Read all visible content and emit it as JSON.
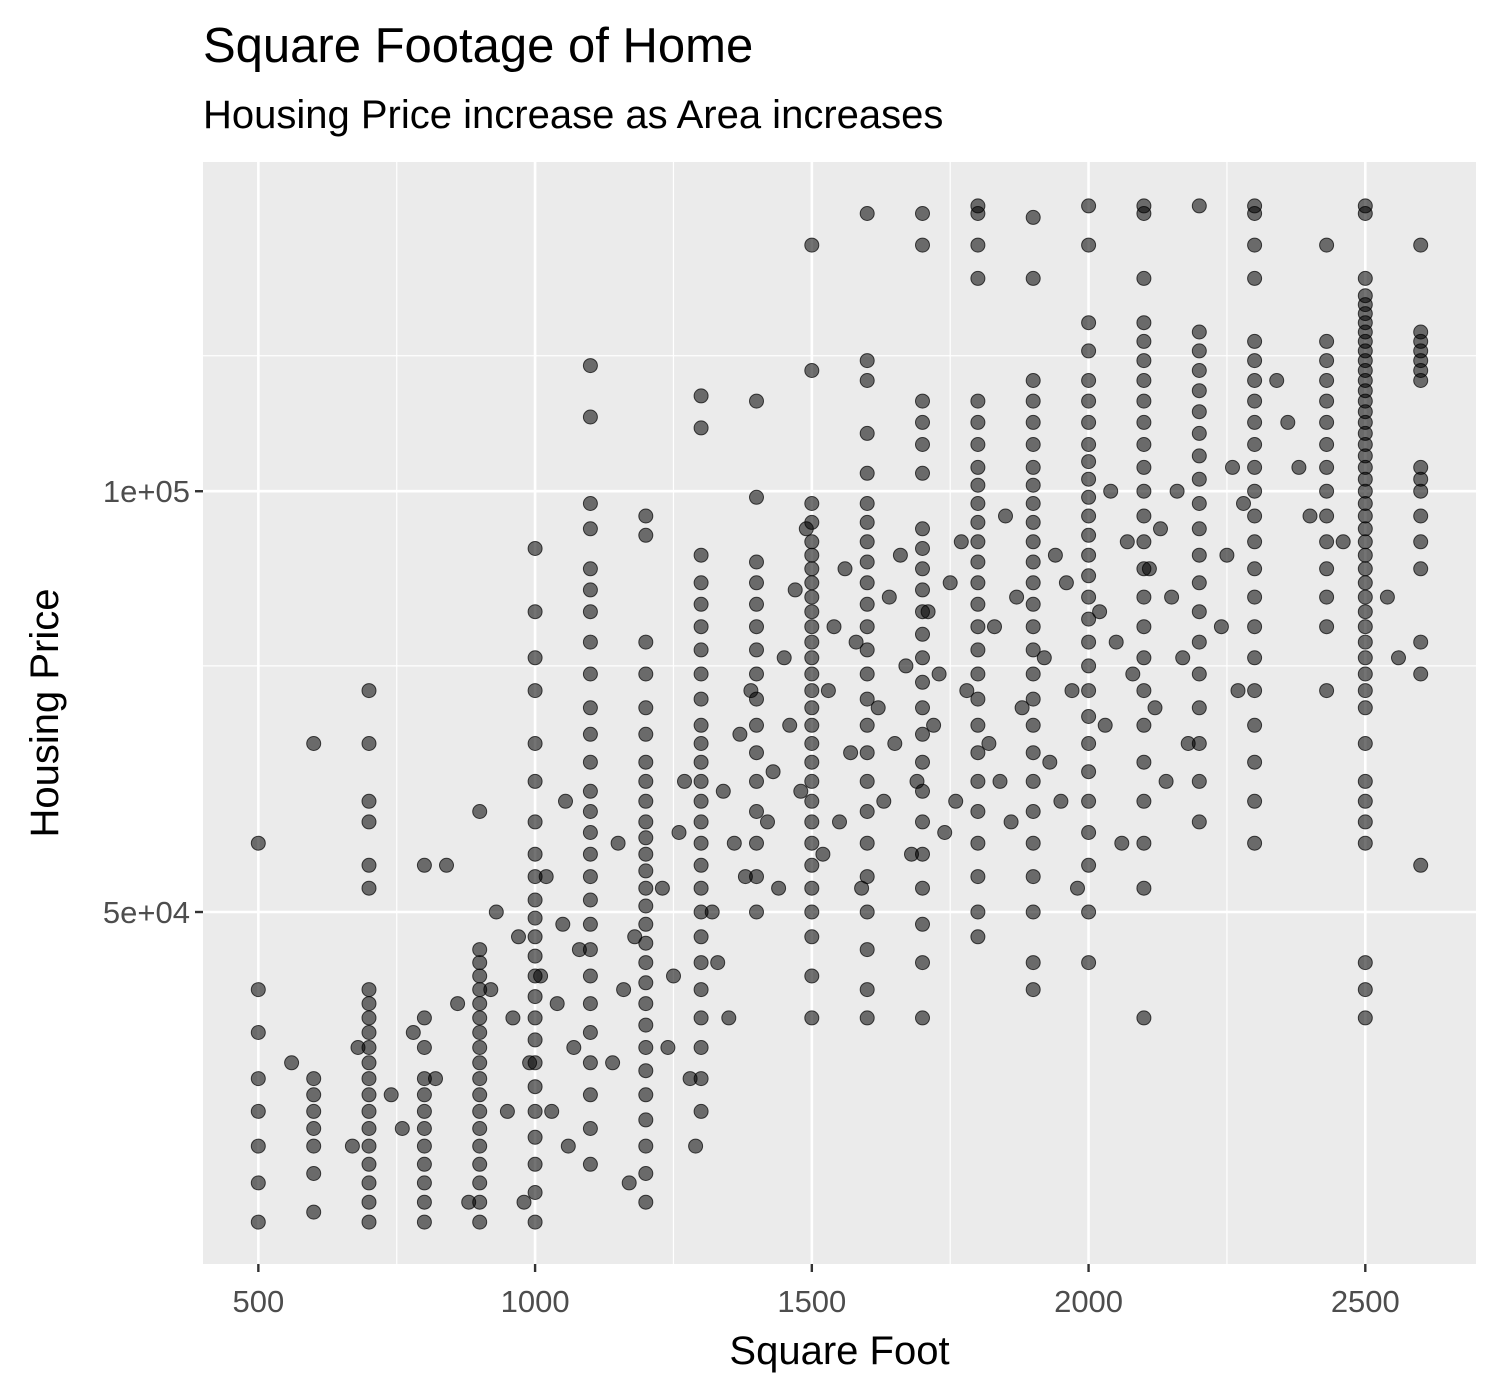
{
  "chart_data": {
    "type": "scatter",
    "title": "Square Footage of Home",
    "subtitle": "Housing Price increase as Area increases",
    "xlabel": "Square Foot",
    "ylabel": "Housing Price",
    "xlim": [
      400,
      2700
    ],
    "ylim": [
      28000,
      172000
    ],
    "y_scale": "log",
    "x_ticks": [
      500,
      1000,
      1500,
      2000,
      2500
    ],
    "x_tick_labels": [
      "500",
      "1000",
      "1500",
      "2000",
      "2500"
    ],
    "y_ticks": [
      50000,
      100000
    ],
    "y_tick_labels": [
      "5e+04",
      "1e+05"
    ],
    "grid": true,
    "background_color": "#ebebeb",
    "grid_color": "#ffffff",
    "point_color": "#000000",
    "point_opacity": 0.55,
    "columns": [
      {
        "x": 500,
        "y": [
          30000,
          32000,
          34000,
          36000,
          38000,
          41000,
          44000,
          56000
        ]
      },
      {
        "x": 600,
        "y": [
          30500,
          32500,
          34000,
          35000,
          36000,
          37000,
          38000,
          66000
        ]
      },
      {
        "x": 700,
        "y": [
          30000,
          31000,
          32000,
          33000,
          34000,
          35000,
          36000,
          37000,
          38000,
          39000,
          40000,
          41000,
          42000,
          43000,
          44000,
          52000,
          54000,
          58000,
          60000,
          66000,
          72000
        ]
      },
      {
        "x": 800,
        "y": [
          30000,
          31000,
          32000,
          33000,
          34000,
          35000,
          36000,
          37000,
          38000,
          40000,
          42000,
          54000
        ]
      },
      {
        "x": 900,
        "y": [
          30000,
          31000,
          32000,
          33000,
          34000,
          35000,
          36000,
          37000,
          38000,
          39000,
          40000,
          41000,
          42000,
          43000,
          44000,
          45000,
          46000,
          47000,
          59000
        ]
      },
      {
        "x": 1000,
        "y": [
          30000,
          31500,
          33000,
          34500,
          36000,
          37500,
          39000,
          40500,
          42000,
          43500,
          45000,
          46500,
          48000,
          49500,
          51000,
          53000,
          55000,
          58000,
          62000,
          66000,
          72000,
          76000,
          82000,
          91000
        ]
      },
      {
        "x": 1100,
        "y": [
          33000,
          35000,
          37000,
          39000,
          41000,
          43000,
          45000,
          47000,
          49000,
          51000,
          53000,
          55000,
          57000,
          59000,
          61000,
          64000,
          67000,
          70000,
          74000,
          78000,
          82000,
          85000,
          88000,
          94000,
          98000,
          113000,
          123000
        ]
      },
      {
        "x": 1200,
        "y": [
          31000,
          32500,
          34000,
          35500,
          37000,
          38500,
          40000,
          41500,
          43000,
          44500,
          46000,
          47500,
          49000,
          50500,
          52000,
          53500,
          55000,
          56500,
          58000,
          60000,
          62000,
          64000,
          67000,
          70000,
          74000,
          78000,
          93000,
          96000
        ]
      },
      {
        "x": 1300,
        "y": [
          36000,
          38000,
          40000,
          42000,
          44000,
          46000,
          48000,
          50000,
          52000,
          54000,
          56000,
          58000,
          60000,
          62000,
          64000,
          66000,
          68000,
          71000,
          74000,
          77000,
          80000,
          83000,
          86000,
          90000,
          111000,
          117000
        ]
      },
      {
        "x": 1400,
        "y": [
          50000,
          53000,
          56000,
          59000,
          62000,
          65000,
          68000,
          71000,
          74000,
          77000,
          80000,
          83000,
          86000,
          89000,
          99000,
          116000
        ]
      },
      {
        "x": 1500,
        "y": [
          42000,
          45000,
          48000,
          50000,
          52000,
          54000,
          56000,
          58000,
          60000,
          62000,
          64000,
          66000,
          68000,
          70000,
          72000,
          74000,
          76000,
          78000,
          80000,
          82000,
          84000,
          86000,
          88000,
          90000,
          92000,
          95000,
          98000,
          122000,
          150000
        ]
      },
      {
        "x": 1600,
        "y": [
          42000,
          44000,
          47000,
          50000,
          53000,
          56000,
          59000,
          62000,
          65000,
          68000,
          71000,
          74000,
          77000,
          80000,
          83000,
          86000,
          89000,
          92000,
          95000,
          98000,
          103000,
          110000,
          120000,
          124000,
          158000
        ]
      },
      {
        "x": 1700,
        "y": [
          42000,
          46000,
          49000,
          52000,
          55000,
          58000,
          61000,
          64000,
          67000,
          70000,
          73000,
          76000,
          79000,
          82000,
          85000,
          88000,
          91000,
          94000,
          103000,
          108000,
          112000,
          116000,
          150000,
          158000
        ]
      },
      {
        "x": 1800,
        "y": [
          48000,
          50000,
          53000,
          56000,
          59000,
          62000,
          65000,
          68000,
          71000,
          74000,
          77000,
          80000,
          83000,
          86000,
          89000,
          92000,
          95000,
          98000,
          101000,
          104000,
          108000,
          112000,
          116000,
          142000,
          150000,
          158000,
          160000
        ]
      },
      {
        "x": 1900,
        "y": [
          44000,
          46000,
          50000,
          53000,
          56000,
          59000,
          62000,
          65000,
          68000,
          71000,
          74000,
          77000,
          80000,
          83000,
          86000,
          89000,
          92000,
          95000,
          98000,
          101000,
          104000,
          108000,
          112000,
          116000,
          120000,
          142000,
          157000
        ]
      },
      {
        "x": 2000,
        "y": [
          46000,
          50000,
          54000,
          57000,
          60000,
          63000,
          66000,
          69000,
          72000,
          75000,
          78000,
          81000,
          84000,
          87000,
          90000,
          93000,
          96000,
          99000,
          102000,
          105000,
          108000,
          112000,
          116000,
          120000,
          126000,
          132000,
          150000,
          160000
        ]
      },
      {
        "x": 2100,
        "y": [
          42000,
          52000,
          56000,
          60000,
          64000,
          68000,
          72000,
          76000,
          80000,
          84000,
          88000,
          92000,
          96000,
          100000,
          104000,
          108000,
          112000,
          116000,
          120000,
          124000,
          128000,
          132000,
          142000,
          158000,
          160000
        ]
      },
      {
        "x": 2200,
        "y": [
          58000,
          62000,
          66000,
          70000,
          74000,
          78000,
          82000,
          86000,
          90000,
          94000,
          98000,
          102000,
          106000,
          110000,
          114000,
          118000,
          122000,
          126000,
          130000,
          160000
        ]
      },
      {
        "x": 2300,
        "y": [
          56000,
          60000,
          64000,
          68000,
          72000,
          76000,
          80000,
          84000,
          88000,
          92000,
          96000,
          100000,
          104000,
          108000,
          112000,
          116000,
          120000,
          124000,
          128000,
          142000,
          150000,
          158000,
          160000
        ]
      },
      {
        "x": 2430,
        "y": [
          72000,
          80000,
          84000,
          88000,
          92000,
          96000,
          100000,
          104000,
          108000,
          112000,
          116000,
          120000,
          124000,
          128000,
          150000
        ]
      },
      {
        "x": 2500,
        "y": [
          42000,
          44000,
          46000,
          56000,
          58000,
          60000,
          62000,
          66000,
          70000,
          72000,
          74000,
          76000,
          78000,
          80000,
          82000,
          84000,
          86000,
          88000,
          90000,
          92000,
          94000,
          96000,
          98000,
          100000,
          102000,
          104000,
          106000,
          108000,
          110000,
          112000,
          114000,
          116000,
          118000,
          120000,
          122000,
          124000,
          126000,
          128000,
          130000,
          132000,
          134000,
          136000,
          138000,
          142000,
          158000,
          160000
        ]
      },
      {
        "x": 2600,
        "y": [
          54000,
          74000,
          78000,
          88000,
          92000,
          96000,
          100000,
          102000,
          104000,
          120000,
          122000,
          124000,
          126000,
          128000,
          130000,
          150000
        ]
      }
    ],
    "scattered_points": [
      [
        560,
        39000
      ],
      [
        670,
        34000
      ],
      [
        680,
        40000
      ],
      [
        740,
        37000
      ],
      [
        760,
        35000
      ],
      [
        780,
        41000
      ],
      [
        820,
        38000
      ],
      [
        840,
        54000
      ],
      [
        860,
        43000
      ],
      [
        880,
        31000
      ],
      [
        920,
        44000
      ],
      [
        930,
        50000
      ],
      [
        950,
        36000
      ],
      [
        960,
        42000
      ],
      [
        970,
        48000
      ],
      [
        980,
        31000
      ],
      [
        990,
        39000
      ],
      [
        1010,
        45000
      ],
      [
        1020,
        53000
      ],
      [
        1030,
        36000
      ],
      [
        1040,
        43000
      ],
      [
        1050,
        49000
      ],
      [
        1055,
        60000
      ],
      [
        1060,
        34000
      ],
      [
        1070,
        40000
      ],
      [
        1080,
        47000
      ],
      [
        1140,
        39000
      ],
      [
        1150,
        56000
      ],
      [
        1160,
        44000
      ],
      [
        1170,
        32000
      ],
      [
        1180,
        48000
      ],
      [
        1230,
        52000
      ],
      [
        1240,
        40000
      ],
      [
        1250,
        45000
      ],
      [
        1260,
        57000
      ],
      [
        1270,
        62000
      ],
      [
        1280,
        38000
      ],
      [
        1290,
        34000
      ],
      [
        1320,
        50000
      ],
      [
        1330,
        46000
      ],
      [
        1340,
        61000
      ],
      [
        1350,
        42000
      ],
      [
        1360,
        56000
      ],
      [
        1370,
        67000
      ],
      [
        1380,
        53000
      ],
      [
        1390,
        72000
      ],
      [
        1420,
        58000
      ],
      [
        1430,
        63000
      ],
      [
        1440,
        52000
      ],
      [
        1450,
        76000
      ],
      [
        1460,
        68000
      ],
      [
        1470,
        85000
      ],
      [
        1480,
        61000
      ],
      [
        1490,
        94000
      ],
      [
        1520,
        55000
      ],
      [
        1530,
        72000
      ],
      [
        1540,
        80000
      ],
      [
        1550,
        58000
      ],
      [
        1560,
        88000
      ],
      [
        1570,
        65000
      ],
      [
        1580,
        78000
      ],
      [
        1590,
        52000
      ],
      [
        1620,
        70000
      ],
      [
        1630,
        60000
      ],
      [
        1640,
        84000
      ],
      [
        1650,
        66000
      ],
      [
        1660,
        90000
      ],
      [
        1670,
        75000
      ],
      [
        1680,
        55000
      ],
      [
        1690,
        62000
      ],
      [
        1710,
        82000
      ],
      [
        1720,
        68000
      ],
      [
        1730,
        74000
      ],
      [
        1740,
        57000
      ],
      [
        1750,
        86000
      ],
      [
        1760,
        60000
      ],
      [
        1770,
        92000
      ],
      [
        1780,
        72000
      ],
      [
        1820,
        66000
      ],
      [
        1830,
        80000
      ],
      [
        1840,
        62000
      ],
      [
        1850,
        96000
      ],
      [
        1860,
        58000
      ],
      [
        1870,
        84000
      ],
      [
        1880,
        70000
      ],
      [
        1920,
        76000
      ],
      [
        1930,
        64000
      ],
      [
        1940,
        90000
      ],
      [
        1950,
        60000
      ],
      [
        1960,
        86000
      ],
      [
        1970,
        72000
      ],
      [
        1980,
        52000
      ],
      [
        2020,
        82000
      ],
      [
        2030,
        68000
      ],
      [
        2040,
        100000
      ],
      [
        2050,
        78000
      ],
      [
        2060,
        56000
      ],
      [
        2070,
        92000
      ],
      [
        2080,
        74000
      ],
      [
        2110,
        88000
      ],
      [
        2120,
        70000
      ],
      [
        2130,
        94000
      ],
      [
        2140,
        62000
      ],
      [
        2150,
        84000
      ],
      [
        2160,
        100000
      ],
      [
        2170,
        76000
      ],
      [
        2180,
        66000
      ],
      [
        2240,
        80000
      ],
      [
        2250,
        90000
      ],
      [
        2260,
        104000
      ],
      [
        2270,
        72000
      ],
      [
        2280,
        98000
      ],
      [
        2340,
        120000
      ],
      [
        2360,
        112000
      ],
      [
        2380,
        104000
      ],
      [
        2400,
        96000
      ],
      [
        2460,
        92000
      ],
      [
        2540,
        84000
      ],
      [
        2560,
        76000
      ]
    ]
  }
}
